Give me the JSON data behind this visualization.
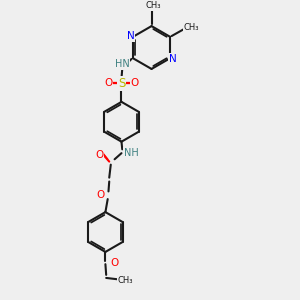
{
  "bg_color": "#efefef",
  "bond_color": "#1a1a1a",
  "bw": 1.5,
  "N_color": "#0000ff",
  "O_color": "#ff0000",
  "S_color": "#b8b800",
  "NH_color": "#3d8080",
  "figsize": [
    3.0,
    3.0
  ],
  "dpi": 100,
  "xlim": [
    0.2,
    2.8
  ],
  "ylim": [
    0.0,
    3.8
  ]
}
